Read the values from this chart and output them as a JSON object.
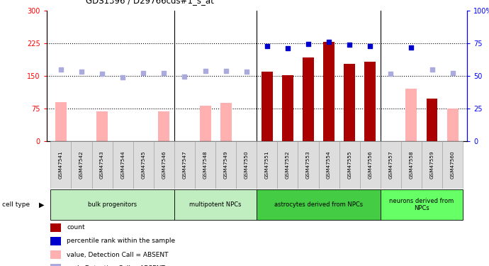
{
  "title": "GDS1396 / D29766cds#1_s_at",
  "samples": [
    "GSM47541",
    "GSM47542",
    "GSM47543",
    "GSM47544",
    "GSM47545",
    "GSM47546",
    "GSM47547",
    "GSM47548",
    "GSM47549",
    "GSM47550",
    "GSM47551",
    "GSM47552",
    "GSM47553",
    "GSM47554",
    "GSM47555",
    "GSM47556",
    "GSM47557",
    "GSM47558",
    "GSM47559",
    "GSM47560"
  ],
  "value_absent": [
    90,
    null,
    68,
    null,
    null,
    68,
    null,
    82,
    88,
    null,
    null,
    null,
    null,
    null,
    null,
    null,
    null,
    120,
    null,
    75
  ],
  "value_present": [
    null,
    null,
    null,
    null,
    null,
    null,
    null,
    null,
    null,
    null,
    160,
    152,
    192,
    228,
    178,
    182,
    null,
    null,
    98,
    null
  ],
  "rank_absent": [
    165,
    160,
    154,
    146,
    157,
    157,
    148,
    162,
    162,
    160,
    null,
    null,
    null,
    null,
    null,
    null,
    154,
    null,
    165,
    157
  ],
  "rank_present": [
    null,
    null,
    null,
    null,
    null,
    null,
    null,
    null,
    null,
    null,
    218,
    214,
    224,
    228,
    221,
    218,
    null,
    215,
    null,
    null
  ],
  "ylim_left": [
    0,
    300
  ],
  "ylim_right": [
    0,
    100
  ],
  "yticks_left": [
    0,
    75,
    150,
    225,
    300
  ],
  "yticks_right": [
    0,
    25,
    50,
    75,
    100
  ],
  "hlines": [
    75,
    150,
    225
  ],
  "bar_color_present": "#aa0000",
  "bar_color_absent": "#ffb0b0",
  "dot_color_present": "#0000cc",
  "dot_color_absent": "#aaaadd",
  "bar_width": 0.55,
  "groups": [
    {
      "label": "bulk progenitors",
      "start": 0,
      "end": 5,
      "color": "#c0eec0"
    },
    {
      "label": "multipotent NPCs",
      "start": 6,
      "end": 9,
      "color": "#c0eec0"
    },
    {
      "label": "astrocytes derived from NPCs",
      "start": 10,
      "end": 15,
      "color": "#44cc44"
    },
    {
      "label": "neurons derived from\nNPCs",
      "start": 16,
      "end": 19,
      "color": "#66ff66"
    }
  ],
  "legend_items": [
    {
      "color": "#aa0000",
      "label": "count"
    },
    {
      "color": "#0000cc",
      "label": "percentile rank within the sample"
    },
    {
      "color": "#ffb0b0",
      "label": "value, Detection Call = ABSENT"
    },
    {
      "color": "#aaaadd",
      "label": "rank, Detection Call = ABSENT"
    }
  ]
}
